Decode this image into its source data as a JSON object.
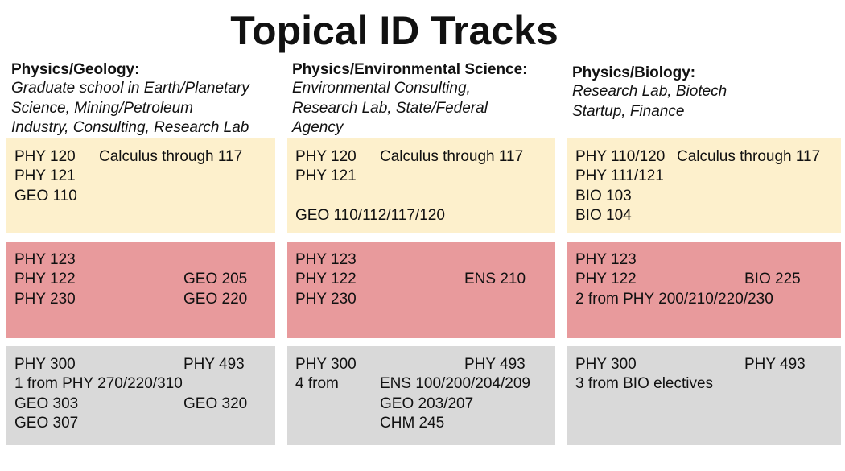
{
  "title": "Topical ID Tracks",
  "columns": [
    {
      "heading": "Physics/Geology:",
      "subtitle": [
        "Graduate school in Earth/Planetary",
        "Science, Mining/Petroleum",
        "Industry, Consulting, Research Lab"
      ],
      "boxes": [
        {
          "items": [
            "PHY 120",
            "Calculus through 117",
            "PHY 121",
            "GEO 110"
          ]
        },
        {
          "items": [
            "PHY 123",
            "PHY 122",
            "GEO 205",
            "PHY 230",
            "GEO 220"
          ]
        },
        {
          "items": [
            "PHY 300",
            "PHY 493",
            "1 from PHY 270/220/310",
            "GEO 303",
            "GEO 320",
            "GEO 307"
          ]
        }
      ]
    },
    {
      "heading": "Physics/Environmental Science:",
      "subtitle": [
        "Environmental Consulting,",
        "Research Lab, State/Federal",
        "Agency"
      ],
      "boxes": [
        {
          "items": [
            "PHY 120",
            "Calculus through 117",
            "PHY 121",
            "GEO 110/112/117/120"
          ]
        },
        {
          "items": [
            "PHY 123",
            "PHY 122",
            "ENS 210",
            "PHY 230"
          ]
        },
        {
          "items": [
            "PHY 300",
            "PHY 493",
            "4 from",
            "ENS 100/200/204/209",
            "GEO 203/207",
            "CHM 245"
          ]
        }
      ]
    },
    {
      "heading": "Physics/Biology:",
      "subtitle": [
        "Research Lab, Biotech",
        "Startup, Finance"
      ],
      "boxes": [
        {
          "items": [
            "PHY 110/120",
            "Calculus through 117",
            "PHY 111/121",
            "BIO 103",
            "BIO 104"
          ]
        },
        {
          "items": [
            "PHY 123",
            "PHY 122",
            "BIO 225",
            "2 from PHY 200/210/220/230"
          ]
        },
        {
          "items": [
            "PHY 300",
            "PHY 493",
            "3 from BIO electives"
          ]
        }
      ]
    }
  ]
}
